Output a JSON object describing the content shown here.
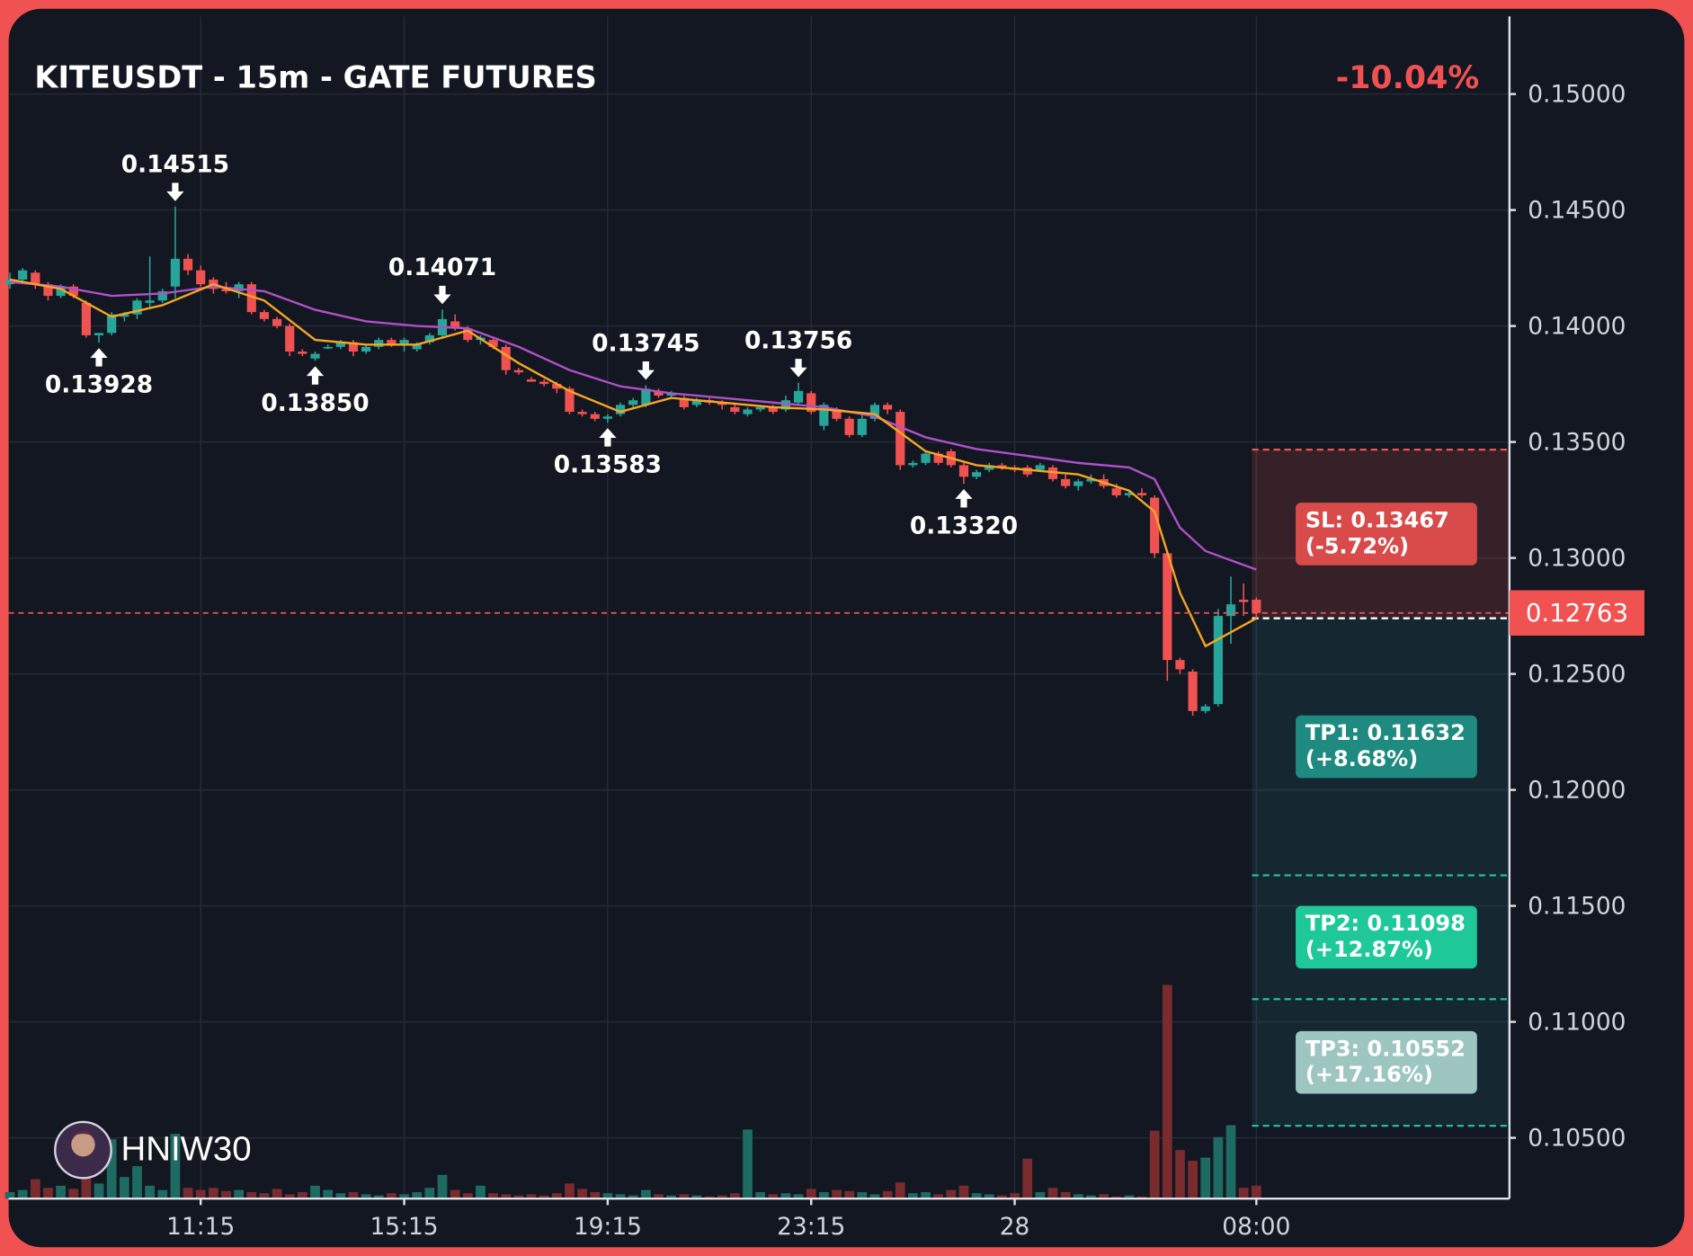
{
  "chart_data": {
    "type": "candlestick",
    "title": "KITEUSDT - 15m - GATE FUTURES",
    "change": "-10.04%",
    "author": "HNIW30",
    "up_color": "#26a69a",
    "down_color": "#f05252",
    "volume_up_color": "#1d6b63",
    "volume_down_color": "#7a2b2e",
    "grid": true,
    "xlim": [
      -0.1,
      117.9
    ],
    "xticks": [
      {
        "value": 15,
        "label": "11:15"
      },
      {
        "value": 31,
        "label": "15:15"
      },
      {
        "value": 47,
        "label": "19:15"
      },
      {
        "value": 63,
        "label": "23:15"
      },
      {
        "value": 79,
        "label": "28"
      },
      {
        "value": 98,
        "label": "08:00"
      }
    ],
    "ylim": [
      0.10238,
      0.15335
    ],
    "yticks": [
      {
        "value": 0.105,
        "label": "0.10500"
      },
      {
        "value": 0.11,
        "label": "0.11000"
      },
      {
        "value": 0.115,
        "label": "0.11500"
      },
      {
        "value": 0.12,
        "label": "0.12000"
      },
      {
        "value": 0.125,
        "label": "0.12500"
      },
      {
        "value": 0.13,
        "label": "0.13000"
      },
      {
        "value": 0.135,
        "label": "0.13500"
      },
      {
        "value": 0.14,
        "label": "0.14000"
      },
      {
        "value": 0.145,
        "label": "0.14500"
      },
      {
        "value": 0.15,
        "label": "0.15000"
      }
    ],
    "open": [
      0.1418,
      0.142,
      0.1423,
      0.1418,
      0.1413,
      0.1417,
      0.141,
      0.1396,
      0.1397,
      0.1404,
      0.1405,
      0.141,
      0.1411,
      0.1417,
      0.1429,
      0.1424,
      0.142,
      0.1416,
      0.1415,
      0.1418,
      0.1406,
      0.1403,
      0.14,
      0.1389,
      0.1386,
      0.1391,
      0.1391,
      0.1393,
      0.1389,
      0.1391,
      0.1394,
      0.1392,
      0.139,
      0.1393,
      0.1396,
      0.1402,
      0.1399,
      0.1394,
      0.1394,
      0.1391,
      0.1381,
      0.1377,
      0.1376,
      0.1375,
      0.1373,
      0.1363,
      0.1362,
      0.136,
      0.1362,
      0.1366,
      0.1366,
      0.1372,
      0.137,
      0.1369,
      0.1366,
      0.1368,
      0.1367,
      0.1365,
      0.1362,
      0.1364,
      0.1365,
      0.1364,
      0.1367,
      0.1371,
      0.1357,
      0.1364,
      0.136,
      0.1353,
      0.136,
      0.1366,
      0.1363,
      0.134,
      0.1341,
      0.1345,
      0.1346,
      0.134,
      0.1335,
      0.1338,
      0.134,
      0.1339,
      0.1339,
      0.1338,
      0.1339,
      0.1334,
      0.1331,
      0.1333,
      0.1334,
      0.133,
      0.1327,
      0.1328,
      0.1326,
      0.1302,
      0.1256,
      0.1251,
      0.1234,
      0.1237,
      0.1275,
      0.1282,
      0.1282
    ],
    "high": [
      0.1423,
      0.1425,
      0.1424,
      0.1419,
      0.1418,
      0.1418,
      0.1411,
      0.1397,
      0.1406,
      0.1406,
      0.1412,
      0.143,
      0.1416,
      0.14515,
      0.1431,
      0.1426,
      0.1421,
      0.1419,
      0.1419,
      0.1419,
      0.1407,
      0.1404,
      0.1401,
      0.139,
      0.1389,
      0.1392,
      0.1394,
      0.1394,
      0.1392,
      0.1395,
      0.1395,
      0.1395,
      0.1393,
      0.1397,
      0.14071,
      0.1405,
      0.14,
      0.1396,
      0.1395,
      0.1392,
      0.1382,
      0.1378,
      0.1377,
      0.1376,
      0.1374,
      0.1364,
      0.1363,
      0.1362,
      0.1367,
      0.1369,
      0.13745,
      0.1373,
      0.1372,
      0.137,
      0.1369,
      0.1369,
      0.1368,
      0.1367,
      0.1365,
      0.1366,
      0.1366,
      0.137,
      0.13756,
      0.1372,
      0.1367,
      0.1365,
      0.1361,
      0.1362,
      0.1367,
      0.1367,
      0.1364,
      0.1342,
      0.1346,
      0.1346,
      0.1347,
      0.1341,
      0.1338,
      0.1341,
      0.1341,
      0.134,
      0.134,
      0.1341,
      0.134,
      0.1336,
      0.1334,
      0.1336,
      0.1336,
      0.1332,
      0.1329,
      0.133,
      0.1327,
      0.1303,
      0.1257,
      0.1252,
      0.1237,
      0.1278,
      0.1292,
      0.1289,
      0.1283
    ],
    "low": [
      0.1416,
      0.1418,
      0.1416,
      0.1411,
      0.1412,
      0.1412,
      0.1395,
      0.13928,
      0.1396,
      0.1402,
      0.1403,
      0.1408,
      0.141,
      0.1412,
      0.1422,
      0.1417,
      0.1414,
      0.1414,
      0.1412,
      0.1405,
      0.1402,
      0.1399,
      0.1387,
      0.1387,
      0.1385,
      0.139,
      0.139,
      0.1387,
      0.1388,
      0.139,
      0.1391,
      0.1389,
      0.1389,
      0.1392,
      0.1395,
      0.1398,
      0.1393,
      0.1392,
      0.139,
      0.1379,
      0.1379,
      0.1376,
      0.1374,
      0.1371,
      0.1362,
      0.1361,
      0.1359,
      0.13583,
      0.1361,
      0.1365,
      0.1365,
      0.1369,
      0.1369,
      0.1364,
      0.1365,
      0.1366,
      0.1364,
      0.1362,
      0.1361,
      0.1363,
      0.1362,
      0.1363,
      0.1366,
      0.1362,
      0.1355,
      0.1359,
      0.1352,
      0.1352,
      0.1359,
      0.1362,
      0.1338,
      0.1339,
      0.134,
      0.134,
      0.1339,
      0.1332,
      0.1334,
      0.1337,
      0.1338,
      0.1337,
      0.1335,
      0.1337,
      0.1333,
      0.133,
      0.1329,
      0.1332,
      0.133,
      0.1326,
      0.1326,
      0.1326,
      0.13,
      0.1247,
      0.125,
      0.1232,
      0.1233,
      0.1236,
      0.1263,
      0.1275,
      0.1274
    ],
    "close": [
      0.142,
      0.1424,
      0.1418,
      0.1413,
      0.1417,
      0.1413,
      0.1396,
      0.1397,
      0.1405,
      0.1405,
      0.1411,
      0.1411,
      0.1415,
      0.1429,
      0.1424,
      0.1418,
      0.1416,
      0.1415,
      0.1418,
      0.1406,
      0.1403,
      0.14,
      0.1389,
      0.1388,
      0.1388,
      0.1391,
      0.1393,
      0.1389,
      0.1391,
      0.1394,
      0.1392,
      0.1394,
      0.1392,
      0.1396,
      0.1403,
      0.1399,
      0.1394,
      0.1395,
      0.1391,
      0.1381,
      0.138,
      0.1376,
      0.1375,
      0.1373,
      0.1363,
      0.1362,
      0.136,
      0.1361,
      0.1366,
      0.1368,
      0.1373,
      0.137,
      0.1371,
      0.1365,
      0.1368,
      0.1367,
      0.1366,
      0.1363,
      0.1364,
      0.1365,
      0.1363,
      0.1368,
      0.1372,
      0.1363,
      0.1366,
      0.136,
      0.1353,
      0.136,
      0.1366,
      0.1364,
      0.134,
      0.1341,
      0.1345,
      0.1341,
      0.134,
      0.1335,
      0.1337,
      0.134,
      0.1339,
      0.1338,
      0.1336,
      0.134,
      0.1334,
      0.1331,
      0.1333,
      0.1334,
      0.1331,
      0.1327,
      0.1328,
      0.1327,
      0.1302,
      0.1256,
      0.1252,
      0.1234,
      0.1236,
      0.1275,
      0.128,
      0.1281,
      0.12763
    ],
    "volume": [
      6,
      8,
      18,
      10,
      12,
      9,
      40,
      14,
      55,
      20,
      30,
      12,
      8,
      60,
      10,
      8,
      10,
      7,
      8,
      6,
      5,
      9,
      4,
      6,
      12,
      8,
      5,
      6,
      4,
      3,
      5,
      4,
      6,
      10,
      22,
      8,
      5,
      12,
      5,
      4,
      3,
      4,
      3,
      5,
      14,
      9,
      6,
      5,
      4,
      3,
      8,
      4,
      3,
      4,
      3,
      2,
      3,
      5,
      64,
      6,
      4,
      5,
      4,
      9,
      6,
      8,
      7,
      6,
      4,
      7,
      15,
      5,
      6,
      4,
      8,
      12,
      5,
      4,
      3,
      5,
      37,
      6,
      10,
      6,
      4,
      3,
      4,
      2,
      3,
      2,
      63,
      198,
      45,
      35,
      38,
      57,
      68,
      10,
      12
    ],
    "overlays": [
      {
        "color": "#b050c8",
        "x": [
          0,
          4,
          8,
          12,
          16,
          20,
          24,
          28,
          32,
          36,
          40,
          44,
          48,
          52,
          56,
          60,
          64,
          68,
          72,
          76,
          80,
          84,
          88,
          90,
          92,
          94,
          96,
          98
        ],
        "values": [
          0.1419,
          0.1417,
          0.1413,
          0.1414,
          0.1417,
          0.1415,
          0.1407,
          0.1402,
          0.14,
          0.1399,
          0.1391,
          0.1381,
          0.1374,
          0.1371,
          0.1369,
          0.1367,
          0.1365,
          0.1361,
          0.1352,
          0.1347,
          0.1344,
          0.1341,
          0.1339,
          0.1334,
          0.1313,
          0.1303,
          0.1299,
          0.1295
        ]
      },
      {
        "color": "#f5a623",
        "x": [
          0,
          4,
          8,
          12,
          16,
          20,
          24,
          28,
          32,
          36,
          40,
          44,
          48,
          52,
          56,
          60,
          64,
          68,
          72,
          76,
          80,
          84,
          88,
          90,
          92,
          94,
          96,
          98
        ],
        "values": [
          0.142,
          0.1416,
          0.1404,
          0.1409,
          0.1418,
          0.1411,
          0.1394,
          0.1392,
          0.1392,
          0.1398,
          0.1384,
          0.1372,
          0.1363,
          0.1369,
          0.1367,
          0.1365,
          0.1364,
          0.1362,
          0.1346,
          0.134,
          0.1338,
          0.1336,
          0.1329,
          0.132,
          0.1285,
          0.1262,
          0.1268,
          0.1274
        ]
      }
    ],
    "annotations": [
      {
        "index": 13,
        "value": 0.14515,
        "label": "0.14515",
        "kind": "high"
      },
      {
        "index": 7,
        "value": 0.13928,
        "label": "0.13928",
        "kind": "low"
      },
      {
        "index": 24,
        "value": 0.1385,
        "label": "0.13850",
        "kind": "low"
      },
      {
        "index": 34,
        "value": 0.14071,
        "label": "0.14071",
        "kind": "high"
      },
      {
        "index": 47,
        "value": 0.13583,
        "label": "0.13583",
        "kind": "low"
      },
      {
        "index": 50,
        "value": 0.13745,
        "label": "0.13745",
        "kind": "high"
      },
      {
        "index": 62,
        "value": 0.13756,
        "label": "0.13756",
        "kind": "high"
      },
      {
        "index": 75,
        "value": 0.1332,
        "label": "0.13320",
        "kind": "low"
      }
    ],
    "last_price": 0.12763,
    "position": {
      "start": 98,
      "entry": 0.1274,
      "levels": [
        {
          "value": 0.13467,
          "label": "SL: 0.13467",
          "change": "(-5.72%)",
          "color": "#d94a4a",
          "line_color": "#f05252"
        },
        {
          "value": 0.11632,
          "label": "TP1: 0.11632",
          "change": "(+8.68%)",
          "color": "#1f8a80",
          "line_color": "#26c6a0"
        },
        {
          "value": 0.11098,
          "label": "TP2: 0.11098",
          "change": "(+12.87%)",
          "color": "#1fc898",
          "line_color": "#26c6a0"
        },
        {
          "value": 0.10552,
          "label": "TP3: 0.10552",
          "change": "(+17.16%)",
          "color": "#9ec6c1",
          "line_color": "#26c6a0"
        }
      ]
    }
  }
}
